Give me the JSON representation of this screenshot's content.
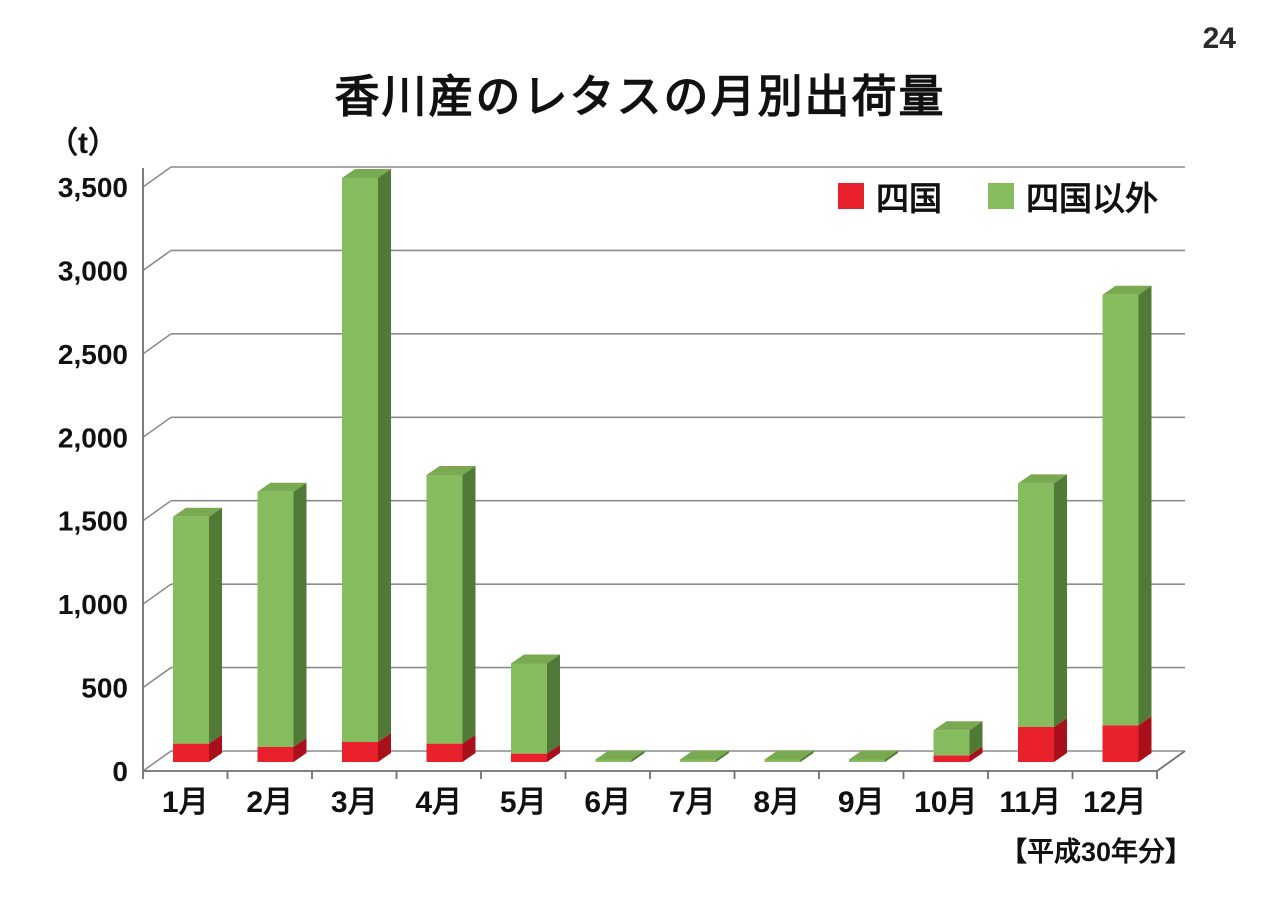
{
  "page": {
    "number": "24"
  },
  "title": "香川産のレタスの月別出荷量",
  "axis_unit": "（t）",
  "footnote": "【平成30年分】",
  "legend": [
    {
      "label": "四国",
      "color": "#e8212d"
    },
    {
      "label": "四国以外",
      "color": "#86bb5e"
    }
  ],
  "colors": {
    "red_front": "#e8212d",
    "red_side": "#a8111b",
    "green_front": "#86bb5e",
    "green_top": "#79aa52",
    "green_side": "#507a36",
    "grid": "#8c8c8c",
    "axis": "#707070",
    "text": "#111111"
  },
  "chart_data": {
    "type": "bar",
    "stacked": true,
    "title": "香川産のレタスの月別出荷量",
    "ylabel": "（t）",
    "note": "【平成30年分】",
    "categories": [
      "1月",
      "2月",
      "3月",
      "4月",
      "5月",
      "6月",
      "7月",
      "8月",
      "9月",
      "10月",
      "11月",
      "12月"
    ],
    "series": [
      {
        "name": "四国",
        "color": "#e8212d",
        "values": [
          110,
          90,
          120,
          110,
          50,
          0,
          0,
          0,
          0,
          40,
          210,
          220
        ]
      },
      {
        "name": "四国以外",
        "color": "#86bb5e",
        "values": [
          1360,
          1530,
          3380,
          1610,
          540,
          15,
          15,
          15,
          15,
          150,
          1460,
          2580
        ]
      }
    ],
    "totals": [
      1470,
      1620,
      3500,
      1720,
      590,
      15,
      15,
      15,
      15,
      190,
      1670,
      2800
    ],
    "yticks": [
      0,
      500,
      1000,
      1500,
      2000,
      2500,
      3000,
      3500
    ],
    "ylim": [
      0,
      3500
    ],
    "grid": true,
    "legend_position": "top-right",
    "style": "3d-stacked-column"
  }
}
